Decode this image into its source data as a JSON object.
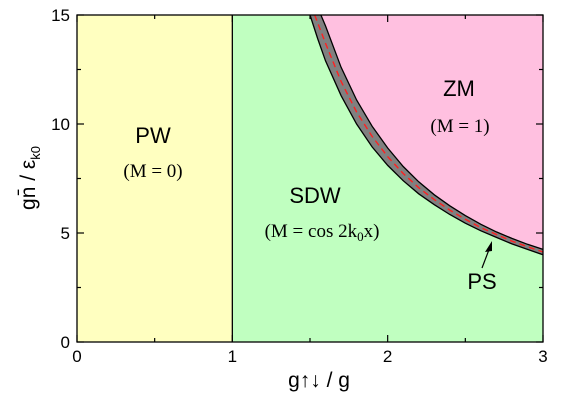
{
  "chart_data": {
    "type": "area",
    "title": "",
    "xlabel": "g↑↓ / g",
    "ylabel": "gn̄ / ε",
    "ylabel_sub": "k0",
    "xlim": [
      0,
      3
    ],
    "ylim": [
      0,
      15
    ],
    "xticks": [
      0,
      1,
      2,
      3
    ],
    "yticks": [
      0,
      5,
      10,
      15
    ],
    "grid": false,
    "regions": [
      {
        "name": "PW",
        "condition": "M = 0",
        "color": "#ffffc0"
      },
      {
        "name": "SDW",
        "condition": "M = cos 2k",
        "condition_sub": "0",
        "condition_end": "x",
        "color": "#c0ffc0"
      },
      {
        "name": "ZM",
        "condition": "M = 1",
        "color": "#ffc0e0"
      }
    ],
    "phase_separation": {
      "name": "PS",
      "color": "#808080"
    },
    "boundaries": {
      "pw_sdw_x": 1.0,
      "lower": {
        "x": [
          1.5,
          1.55,
          1.6,
          1.7,
          1.8,
          1.9,
          2.0,
          2.1,
          2.2,
          2.3,
          2.4,
          2.5,
          2.6,
          2.7,
          2.8,
          2.9,
          3.0
        ],
        "y": [
          15.0,
          13.9,
          12.9,
          11.3,
          10.0,
          8.95,
          8.1,
          7.4,
          6.8,
          6.3,
          5.85,
          5.45,
          5.1,
          4.8,
          4.5,
          4.25,
          4.0
        ]
      },
      "upper": {
        "x": [
          1.57,
          1.6,
          1.7,
          1.8,
          1.9,
          2.0,
          2.1,
          2.2,
          2.3,
          2.4,
          2.5,
          2.6,
          2.7,
          2.8,
          2.9,
          3.0
        ],
        "y": [
          15.0,
          14.5,
          12.6,
          11.1,
          9.9,
          8.9,
          8.05,
          7.35,
          6.75,
          6.25,
          5.8,
          5.4,
          5.05,
          4.75,
          4.48,
          4.25
        ]
      },
      "dashed": {
        "x": [
          1.53,
          1.6,
          1.7,
          1.8,
          1.9,
          2.0,
          2.1,
          2.2,
          2.3,
          2.4,
          2.5,
          2.6,
          2.7,
          2.8,
          2.9,
          3.0
        ],
        "y": [
          15.0,
          13.7,
          11.95,
          10.55,
          9.43,
          8.5,
          7.73,
          7.08,
          6.53,
          6.05,
          5.63,
          5.25,
          4.93,
          4.63,
          4.37,
          4.13
        ],
        "color": "#ff2020"
      }
    }
  }
}
